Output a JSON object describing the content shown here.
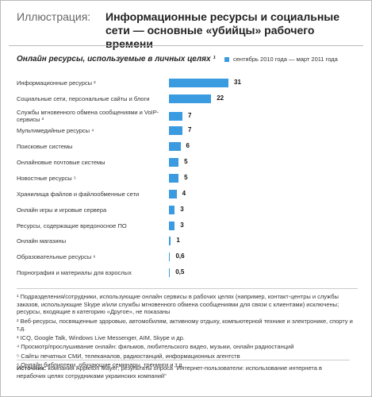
{
  "chart_data": {
    "type": "bar",
    "header_label": "Иллюстрация:",
    "title": "Информационные ресурсы и социальные сети — основные «убийцы» рабочего времени",
    "subtitle": "Онлайн ресурсы, используемые в личных целях ¹",
    "categories": [
      "Информационные ресурсы ²",
      "Социальные сети, персональные сайты и блоги",
      "Службы мгновенного обмена сообщениями и VoIP-сервисы ³",
      "Мультимедийные ресурсы ⁴",
      "Поисковые системы",
      "Онлайновые почтовые системы",
      "Новостные ресурсы ⁵",
      "Хранилища файлов и файлообменные сети",
      "Онлайн игры и игровые сервера",
      "Ресурсы, содержащие вредоносное ПО",
      "Онлайн магазины",
      "Образовательные ресурсы ⁶",
      "Порнография и материалы для взрослых"
    ],
    "series": [
      {
        "name": "сентябрь 2010 года — март 2011 года",
        "color": "#3a9be0",
        "values": [
          31,
          22,
          7,
          7,
          6,
          5,
          5,
          4,
          3,
          3,
          1,
          0.6,
          0.5
        ],
        "value_labels": [
          "31",
          "22",
          "7",
          "7",
          "6",
          "5",
          "5",
          "4",
          "3",
          "3",
          "1",
          "0,6",
          "0,5"
        ]
      }
    ],
    "footnotes": [
      "¹ Подразделения/сотрудники, использующие онлайн сервисы в рабочих целях (например, контакт-центры и службы заказов, использующие Skype и/или службы мгновенного обмена сообщениями для связи с клиентами) исключены; ресурсы, входящие в категорию «Другое», не показаны",
      "² Веб-ресурсы, посвященные здоровью, автомобилям, активному отдыху, компьютерной технике и электронике, спорту и т.д.",
      "³ ICQ, Google Talk, Windows Live Messenger, AIM, Skype и др.",
      "⁴ Просмотр/прослушивание онлайн: фильмов, любительского видео, музыки, онлайн радиостанций",
      "⁵ Сайты печатных СМИ, телеканалов, радиостанций, информационных агентств",
      "⁶ Онлайн библиотеки, обучающие семинары, тренинги и т.д."
    ],
    "source_label": "Источник:",
    "source_text": "компания Appleton Mayer; результаты опроса \"Интернет-пользователи: использование интернета в нерабочих целях сотрудниками украинских компаний\""
  }
}
